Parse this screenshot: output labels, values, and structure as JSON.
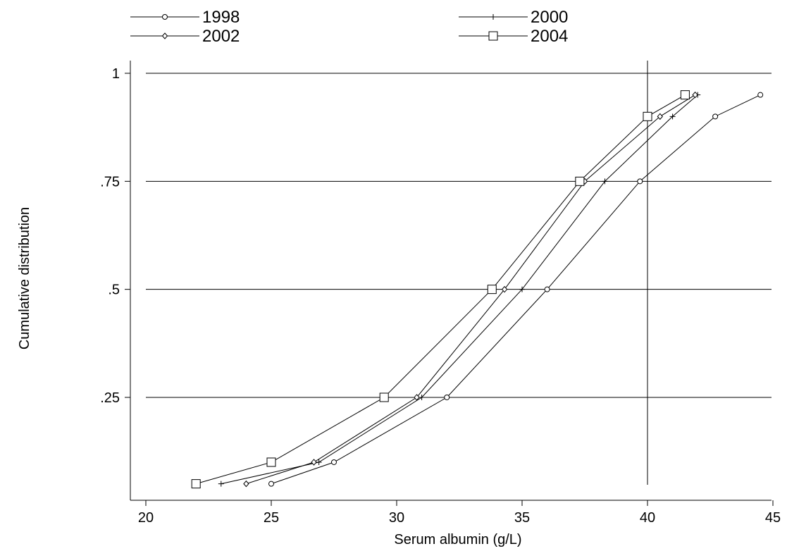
{
  "chart_data": {
    "type": "line",
    "xlabel": "Serum albumin (g/L)",
    "ylabel": "Cumulative distribution",
    "xlim": [
      20,
      45
    ],
    "ylim": [
      0.05,
      1
    ],
    "x_ticks": [
      20,
      25,
      30,
      35,
      40,
      45
    ],
    "x_tick_labels": [
      "20",
      "25",
      "30",
      "35",
      "40",
      "45"
    ],
    "y_ticks": [
      0.25,
      0.5,
      0.75,
      1
    ],
    "y_tick_labels": [
      ".25",
      ".5",
      ".75",
      "1"
    ],
    "grid": "horizontal",
    "reference_line_x": 40,
    "legend_position": "top",
    "line_color": "#000000",
    "series": [
      {
        "name": "1998",
        "marker": "circle",
        "x": [
          25.0,
          27.5,
          32.0,
          36.0,
          39.7,
          42.7,
          44.5
        ],
        "y": [
          0.05,
          0.1,
          0.25,
          0.5,
          0.75,
          0.9,
          0.95
        ]
      },
      {
        "name": "2000",
        "marker": "plus",
        "x": [
          23.0,
          26.9,
          31.0,
          35.0,
          38.3,
          41.0,
          42.0
        ],
        "y": [
          0.05,
          0.1,
          0.25,
          0.5,
          0.75,
          0.9,
          0.95
        ]
      },
      {
        "name": "2002",
        "marker": "diamond",
        "x": [
          24.0,
          26.7,
          30.8,
          34.3,
          37.5,
          40.5,
          41.9
        ],
        "y": [
          0.05,
          0.1,
          0.25,
          0.5,
          0.75,
          0.9,
          0.95
        ]
      },
      {
        "name": "2004",
        "marker": "square",
        "x": [
          22.0,
          25.0,
          29.5,
          33.8,
          37.3,
          40.0,
          41.5
        ],
        "y": [
          0.05,
          0.1,
          0.25,
          0.5,
          0.75,
          0.9,
          0.95
        ]
      }
    ]
  }
}
